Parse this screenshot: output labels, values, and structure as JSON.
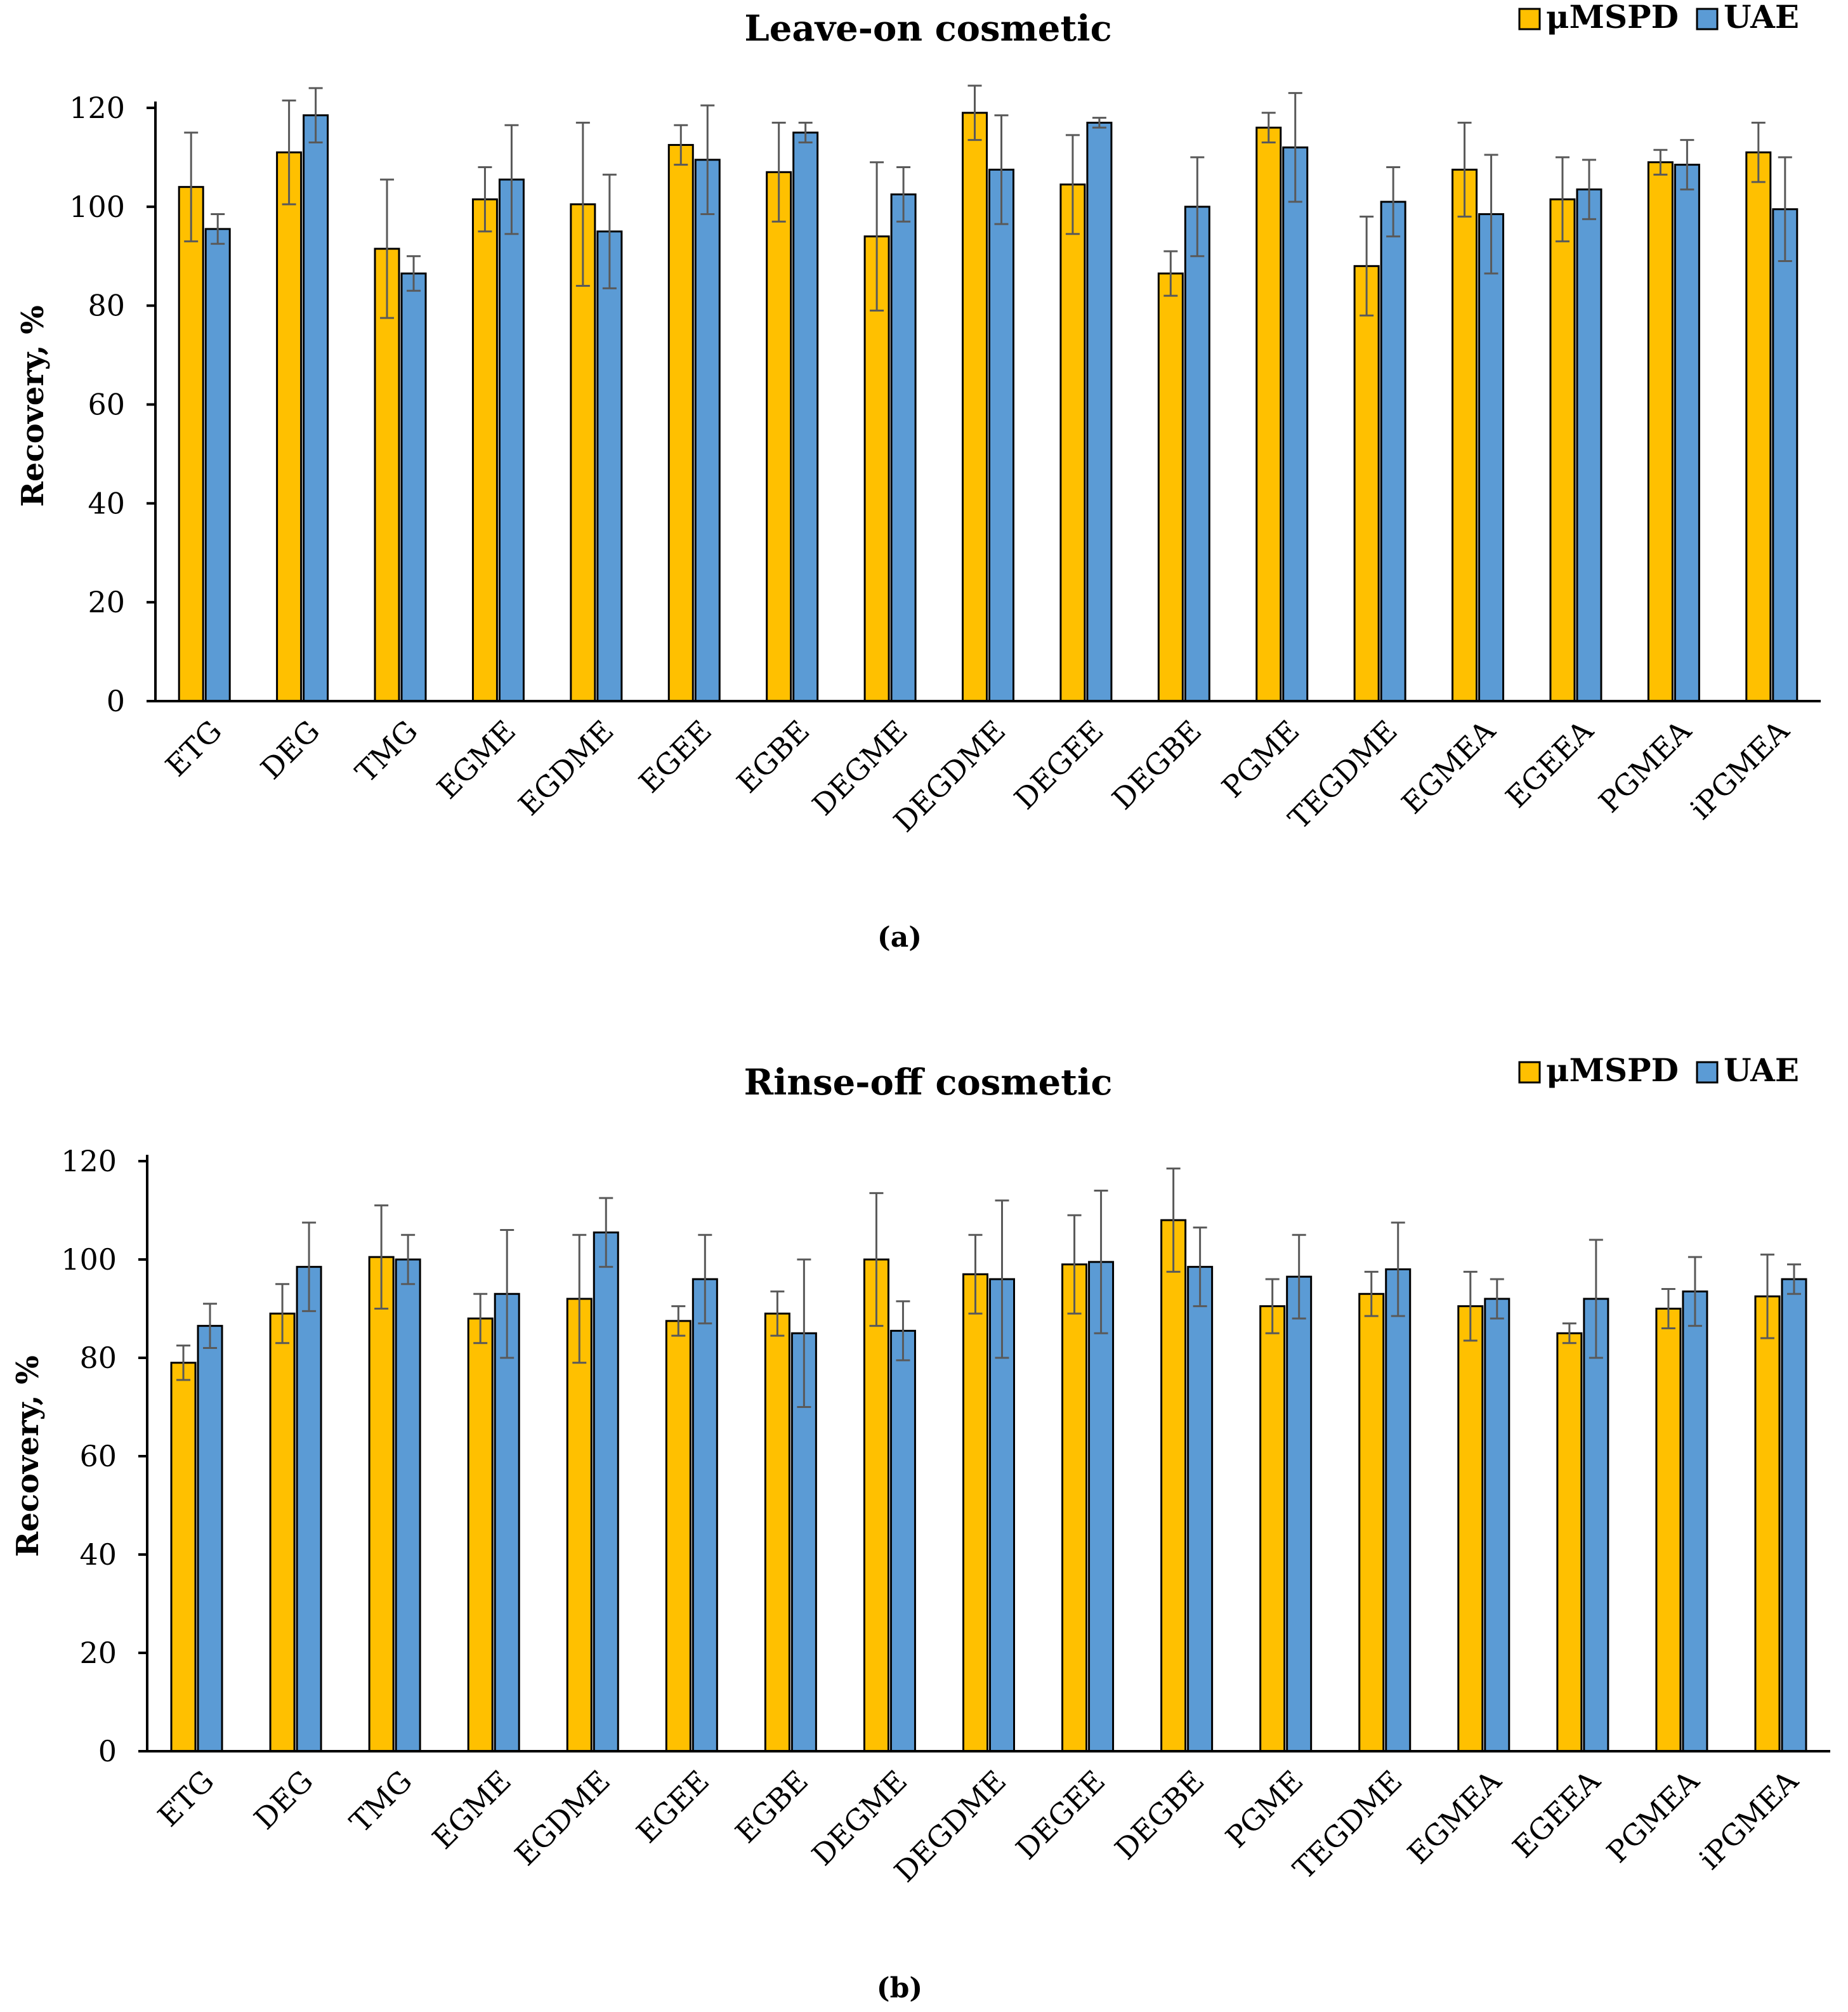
{
  "colors": {
    "mspd": "#FFC000",
    "uae": "#5B9BD5",
    "axis": "#000000",
    "errorbar": "#595959"
  },
  "chart_data": [
    {
      "type": "bar",
      "title": "Leave-on cosmetic",
      "caption": "(a)",
      "xlabel": "",
      "ylabel": "Recovery, %",
      "ylim": [
        0,
        120
      ],
      "yticks": [
        0,
        20,
        40,
        60,
        80,
        100,
        120
      ],
      "legend_position": "top-right",
      "grid": false,
      "categories": [
        "ETG",
        "DEG",
        "TMG",
        "EGME",
        "EGDME",
        "EGEE",
        "EGBE",
        "DEGME",
        "DEGDME",
        "DEGEE",
        "DEGBE",
        "PGME",
        "TEGDME",
        "EGMEA",
        "EGEEA",
        "PGMEA",
        "iPGMEA"
      ],
      "series": [
        {
          "name": "μMSPD",
          "values": [
            104,
            111,
            91.5,
            101.5,
            100.5,
            112.5,
            107,
            94,
            119,
            104.5,
            86.5,
            116,
            88,
            107.5,
            101.5,
            109,
            111
          ],
          "errors": [
            11,
            10.5,
            14,
            6.5,
            16.5,
            4,
            10,
            15,
            5.5,
            10,
            4.5,
            3,
            10,
            9.5,
            8.5,
            2.5,
            6
          ]
        },
        {
          "name": "UAE",
          "values": [
            95.5,
            118.5,
            86.5,
            105.5,
            95,
            109.5,
            115,
            102.5,
            107.5,
            117,
            100,
            112,
            101,
            98.5,
            103.5,
            108.5,
            99.5
          ],
          "errors": [
            3,
            5.5,
            3.5,
            11,
            11.5,
            11,
            2,
            5.5,
            11,
            1,
            10,
            11,
            7,
            12,
            6,
            5,
            10.5
          ]
        }
      ]
    },
    {
      "type": "bar",
      "title": "Rinse-off cosmetic",
      "caption": "(b)",
      "xlabel": "",
      "ylabel": "Recovery, %",
      "ylim": [
        0,
        120
      ],
      "yticks": [
        0,
        20,
        40,
        60,
        80,
        100,
        120
      ],
      "legend_position": "top-right",
      "grid": false,
      "categories": [
        "ETG",
        "DEG",
        "TMG",
        "EGME",
        "EGDME",
        "EGEE",
        "EGBE",
        "DEGME",
        "DEGDME",
        "DEGEE",
        "DEGBE",
        "PGME",
        "TEGDME",
        "EGMEA",
        "EGEEA",
        "PGMEA",
        "iPGMEA"
      ],
      "series": [
        {
          "name": "μMSPD",
          "values": [
            79,
            89,
            100.5,
            88,
            92,
            87.5,
            89,
            100,
            97,
            99,
            108,
            90.5,
            93,
            90.5,
            85,
            90,
            92.5
          ],
          "errors": [
            3.5,
            6,
            10.5,
            5,
            13,
            3,
            4.5,
            13.5,
            8,
            10,
            10.5,
            5.5,
            4.5,
            7,
            2,
            4,
            8.5
          ]
        },
        {
          "name": "UAE",
          "values": [
            86.5,
            98.5,
            100,
            93,
            105.5,
            96,
            85,
            85.5,
            96,
            99.5,
            98.5,
            96.5,
            98,
            92,
            92,
            93.5,
            96
          ],
          "errors": [
            4.5,
            9,
            5,
            13,
            7,
            9,
            15,
            6,
            16,
            14.5,
            8,
            8.5,
            9.5,
            4,
            12,
            7,
            3
          ]
        }
      ]
    }
  ]
}
